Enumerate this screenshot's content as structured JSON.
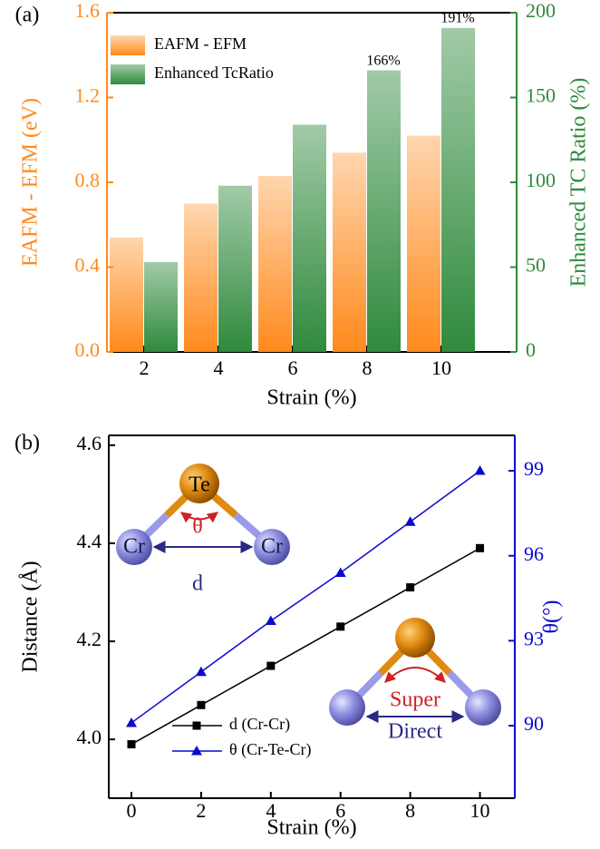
{
  "chart_data": [
    {
      "type": "bar",
      "panel_label": "(a)",
      "xlabel": "Strain (%)",
      "ylabel": "EAFM - EFM (eV)",
      "y2label": "Enhanced TC Ratio (%)",
      "categories": [
        "2",
        "4",
        "6",
        "8",
        "10"
      ],
      "ylim": [
        0,
        1.6
      ],
      "yticks": [
        {
          "value": 0,
          "label": "0.0"
        },
        0.4,
        0.8,
        1.2,
        1.6
      ],
      "y2lim": [
        0,
        200
      ],
      "y2ticks": [
        0,
        50,
        100,
        150,
        200
      ],
      "legend": "upper left",
      "series": [
        {
          "name": "EAFM - EFM",
          "color": "#ff8a1c",
          "values": [
            0.54,
            0.7,
            0.83,
            0.94,
            1.02
          ]
        },
        {
          "name": "Enhanced TcRatio",
          "color": "#2f8a3c",
          "axis": "y2",
          "values": [
            53,
            98,
            134,
            166,
            191
          ],
          "value_labels": [
            null,
            null,
            null,
            "166%",
            "191%"
          ]
        }
      ]
    },
    {
      "type": "line",
      "panel_label": "(b)",
      "xlabel": "Strain (%)",
      "ylabel": "Distance (Å)",
      "y2label": "θ(°)",
      "x": [
        0,
        2,
        4,
        6,
        8,
        10
      ],
      "xlim": [
        -0.65,
        11
      ],
      "xticks": [
        0,
        2,
        4,
        6,
        8,
        10
      ],
      "ylim": [
        3.88,
        4.62
      ],
      "yticks": [
        {
          "value": 4,
          "label": "4.0"
        },
        4.2,
        4.4,
        4.6
      ],
      "y2lim": [
        87.44,
        100.25
      ],
      "y2ticks": [
        90,
        93,
        96,
        99
      ],
      "legend": "lower left",
      "series": [
        {
          "name": "d (Cr-Cr)",
          "color": "#000000",
          "marker": "square",
          "values": [
            3.99,
            4.07,
            4.15,
            4.23,
            4.31,
            4.39
          ]
        },
        {
          "name": "θ (Cr-Te-Cr)",
          "color": "#0a0ad0",
          "marker": "triangle",
          "axis": "y2",
          "values": [
            90.1,
            91.9,
            93.7,
            95.4,
            97.2,
            99.0
          ]
        }
      ],
      "annotations": [
        "Te",
        "θ",
        "Cr",
        "Cr",
        "d",
        "Super",
        "Direct"
      ]
    }
  ]
}
